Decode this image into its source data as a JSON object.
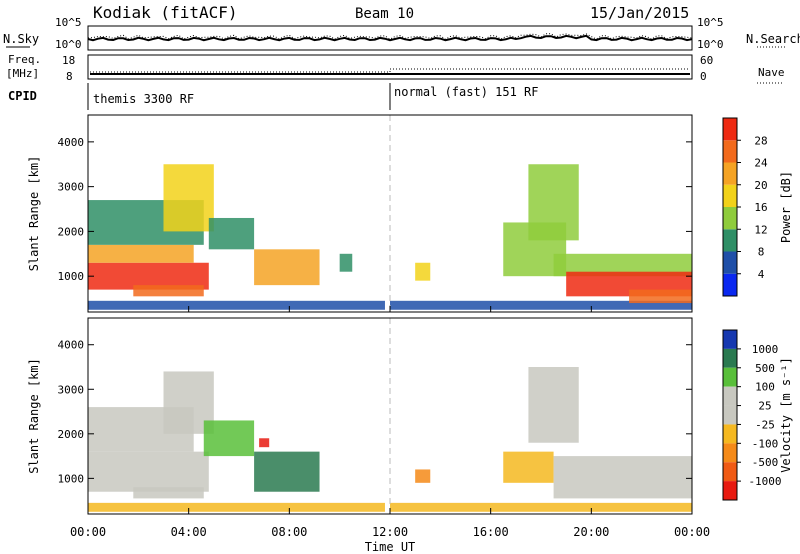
{
  "header": {
    "station": "Kodiak (fitACF)",
    "beam": "Beam 10",
    "date": "15/Jan/2015"
  },
  "top_panels": {
    "nsky": {
      "label": "N.Sky",
      "right_label": "N.Search",
      "left_ticks": [
        "10^5",
        "10^0"
      ],
      "right_ticks": [
        "10^5",
        "10^0"
      ]
    },
    "freq": {
      "label_line1": "Freq.",
      "label_line2": "[MHz]",
      "right_label": "Nave",
      "left_ticks": [
        "18",
        "8"
      ],
      "right_ticks": [
        "60",
        "0"
      ]
    },
    "cpid": {
      "label": "CPID",
      "mode1": "themis 3300 RF",
      "mode2": "normal (fast) 151 RF"
    }
  },
  "colors": {
    "power": [
      "#0a28f0",
      "#1f4fa8",
      "#2f8f66",
      "#8fcc3c",
      "#f2d21a",
      "#f5a324",
      "#f26a1c",
      "#ee2a12"
    ],
    "velocity": [
      "#1638b0",
      "#2a7a50",
      "#59bf3a",
      "#c8c8c0",
      "#c8c8c0",
      "#f5b820",
      "#f58a18",
      "#f05a14",
      "#e81a10"
    ]
  },
  "chart_data": [
    {
      "type": "heatmap",
      "title": "Power",
      "ylabel": "Slant Range [km]",
      "ylim": [
        200,
        4600
      ],
      "xlim": [
        "00:00",
        "24:00"
      ],
      "yticks": [
        1000,
        2000,
        3000,
        4000
      ],
      "colorbar": {
        "label": "Power [dB]",
        "ticks": [
          4,
          8,
          12,
          16,
          20,
          24,
          28
        ],
        "range": [
          0,
          32
        ]
      },
      "bands": [
        {
          "t0": 0.0,
          "t1": 4.8,
          "r0": 700,
          "r1": 1300,
          "level": 7
        },
        {
          "t0": 0.0,
          "t1": 4.2,
          "r0": 1300,
          "r1": 1700,
          "level": 5
        },
        {
          "t0": 0.0,
          "t1": 4.6,
          "r0": 1700,
          "r1": 2700,
          "level": 2
        },
        {
          "t0": 1.8,
          "t1": 4.6,
          "r0": 550,
          "r1": 800,
          "level": 6
        },
        {
          "t0": 3.0,
          "t1": 5.0,
          "r0": 2000,
          "r1": 3500,
          "level": 4
        },
        {
          "t0": 4.8,
          "t1": 6.6,
          "r0": 1600,
          "r1": 2300,
          "level": 2
        },
        {
          "t0": 6.6,
          "t1": 9.2,
          "r0": 800,
          "r1": 1600,
          "level": 5
        },
        {
          "t0": 10.0,
          "t1": 10.5,
          "r0": 1100,
          "r1": 1500,
          "level": 2
        },
        {
          "t0": 0.0,
          "t1": 11.8,
          "r0": 250,
          "r1": 450,
          "level": 1
        },
        {
          "t0": 12.0,
          "t1": 24.0,
          "r0": 250,
          "r1": 450,
          "level": 1
        },
        {
          "t0": 13.0,
          "t1": 13.6,
          "r0": 900,
          "r1": 1300,
          "level": 4
        },
        {
          "t0": 16.5,
          "t1": 19.0,
          "r0": 1000,
          "r1": 2200,
          "level": 3
        },
        {
          "t0": 17.5,
          "t1": 19.5,
          "r0": 1800,
          "r1": 3500,
          "level": 3
        },
        {
          "t0": 18.5,
          "t1": 24.0,
          "r0": 1000,
          "r1": 1500,
          "level": 3
        },
        {
          "t0": 19.0,
          "t1": 24.0,
          "r0": 550,
          "r1": 1100,
          "level": 7
        },
        {
          "t0": 21.5,
          "t1": 24.0,
          "r0": 400,
          "r1": 700,
          "level": 6
        }
      ]
    },
    {
      "type": "heatmap",
      "title": "Velocity",
      "ylabel": "Slant Range [km]",
      "ylim": [
        200,
        4600
      ],
      "xlim": [
        "00:00",
        "24:00"
      ],
      "yticks": [
        1000,
        2000,
        3000,
        4000
      ],
      "xticks": [
        "00:00",
        "04:00",
        "08:00",
        "12:00",
        "16:00",
        "20:00",
        "00:00"
      ],
      "xlabel": "Time UT",
      "colorbar": {
        "label": "Velocity [m s^-1]",
        "ticks": [
          "1000",
          "500",
          "100",
          "25",
          "-25",
          "-100",
          "-500",
          "-1000"
        ]
      },
      "bands": [
        {
          "t0": 0.0,
          "t1": 4.8,
          "r0": 700,
          "r1": 1600,
          "level": 3
        },
        {
          "t0": 1.8,
          "t1": 4.6,
          "r0": 550,
          "r1": 800,
          "level": 3
        },
        {
          "t0": 0.0,
          "t1": 4.2,
          "r0": 1600,
          "r1": 2600,
          "level": 3
        },
        {
          "t0": 3.0,
          "t1": 5.0,
          "r0": 2000,
          "r1": 3400,
          "level": 3
        },
        {
          "t0": 4.6,
          "t1": 6.6,
          "r0": 1500,
          "r1": 2300,
          "level": 2
        },
        {
          "t0": 6.6,
          "t1": 9.2,
          "r0": 700,
          "r1": 1600,
          "level": 1
        },
        {
          "t0": 6.8,
          "t1": 7.2,
          "r0": 1700,
          "r1": 1900,
          "level": 8
        },
        {
          "t0": 0.0,
          "t1": 11.8,
          "r0": 250,
          "r1": 450,
          "level": 5
        },
        {
          "t0": 12.0,
          "t1": 24.0,
          "r0": 250,
          "r1": 450,
          "level": 5
        },
        {
          "t0": 13.0,
          "t1": 13.6,
          "r0": 900,
          "r1": 1200,
          "level": 6
        },
        {
          "t0": 16.5,
          "t1": 18.5,
          "r0": 900,
          "r1": 1600,
          "level": 5
        },
        {
          "t0": 17.5,
          "t1": 19.5,
          "r0": 1800,
          "r1": 3500,
          "level": 3
        },
        {
          "t0": 18.5,
          "t1": 24.0,
          "r0": 550,
          "r1": 1500,
          "level": 3
        }
      ]
    }
  ]
}
